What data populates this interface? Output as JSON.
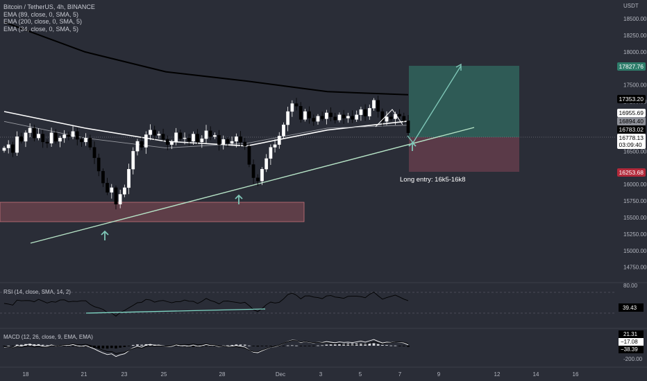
{
  "header": {
    "title": "Bitcoin / TetherUS, 4h, BINANCE",
    "indicators": [
      "EMA (89, close, 0, SMA, 5)",
      "EMA (200, close, 0, SMA, 5)",
      "EMA (34, close, 0, SMA, 5)"
    ]
  },
  "price_axis": {
    "currency": "USDT",
    "ticks": [
      "18500.00",
      "18250.00",
      "18000.00",
      "17500.00",
      "17250.00",
      "16500.00",
      "16000.00",
      "15750.00",
      "15500.00",
      "15250.00",
      "15000.00",
      "14750.00"
    ]
  },
  "price_tags": {
    "target": "17827.76",
    "ema200": "17353.20",
    "ema89": "16955.69",
    "ema34": "16894.40",
    "ema34b": "16783.02",
    "last_price": "16778.13",
    "countdown": "03:09:40",
    "stop": "16253.68"
  },
  "annotation": {
    "text": "Long entry: 16k5-16k8"
  },
  "rsi": {
    "label": "RSI (14, close, SMA, 14, 2)",
    "tick": "80.00",
    "value": "39.43"
  },
  "macd": {
    "label": "MACD (12, 26, close, 9, EMA, EMA)",
    "tick": "-200.00",
    "values": [
      "21.31",
      "−17.08",
      "−38.39"
    ]
  },
  "time_axis": [
    "18",
    "21",
    "23",
    "25",
    "28",
    "Dec",
    "3",
    "5",
    "7",
    "9",
    "12",
    "14",
    "16"
  ],
  "colors": {
    "background": "#2a2d37",
    "candle_up": "#ffffff",
    "candle_down": "#000000",
    "ema200": "#000000",
    "ema89": "#ffffff",
    "ema34": "#9a9ca3",
    "trendline": "#b7e4c7",
    "arrow": "#7fc6b7",
    "target_zone": "#2f5b56",
    "stop_zone": "#5a3a48",
    "demand_zone": "#5e3e48",
    "target_tag": "#2e7d6b",
    "stop_tag": "#b2293a"
  },
  "chart_data": {
    "type": "candlestick",
    "symbol": "BTCUSDT",
    "timeframe": "4h",
    "ylim": [
      14600,
      18700
    ],
    "close_approx": [
      16550,
      16600,
      16480,
      16720,
      16650,
      16780,
      16850,
      16700,
      16760,
      16640,
      16620,
      16780,
      16650,
      16700,
      16750,
      16720,
      16800,
      16680,
      16640,
      16700,
      16560,
      16400,
      16200,
      16020,
      15880,
      15950,
      15700,
      15850,
      15950,
      16230,
      16500,
      16650,
      16560,
      16750,
      16820,
      16740,
      16760,
      16680,
      16600,
      16640,
      16780,
      16690,
      16700,
      16650,
      16760,
      16640,
      16690,
      16810,
      16720,
      16740,
      16600,
      16680,
      16620,
      16650,
      16720,
      16640,
      16580,
      16300,
      16100,
      16050,
      16230,
      16390,
      16560,
      16600,
      16730,
      16900,
      17100,
      17220,
      17180,
      16980,
      17100,
      17000,
      16950,
      17030,
      16990,
      17080,
      17020,
      16970,
      17050,
      17000,
      17030,
      16980,
      17050,
      17130,
      17030,
      17150,
      17270,
      17100,
      16950,
      17020,
      16990,
      17060,
      17030,
      16960,
      16778
    ],
    "ema200": [
      18450,
      18000,
      17700,
      17560,
      17400,
      17353
    ],
    "ema89": [
      17100,
      16850,
      16650,
      16580,
      16820,
      16955
    ],
    "ema34": [
      16950,
      16700,
      16550,
      16620,
      16850,
      16894
    ],
    "trendline": {
      "from": [
        0,
        15230
      ],
      "to": [
        1,
        16890
      ]
    },
    "target": 17827.76,
    "entry_zone": [
      16500,
      16800
    ],
    "stop": 16253.68,
    "demand_zone": [
      15530,
      15800
    ],
    "rsi_last": 39.43,
    "macd_last": [
      21.31,
      -17.08,
      -38.39
    ]
  }
}
